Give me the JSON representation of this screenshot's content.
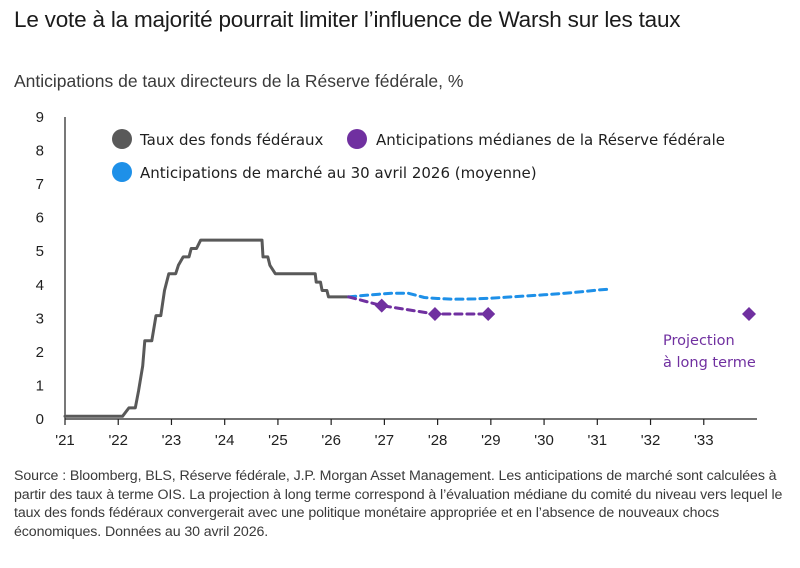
{
  "title": "Le vote à la majorité pourrait limiter l’influence de Warsh sur les taux",
  "subtitle": "Anticipations de taux directeurs de la Réserve fédérale, %",
  "source": "Source : Bloomberg, BLS, Réserve fédérale, J.P. Morgan Asset Management. Les anticipations de marché sont calculées à partir des taux à terme OIS. La projection à long terme correspond à l’évaluation médiane du comité du niveau vers lequel le taux des fonds fédéraux convergerait avec une politique monétaire appropriée et en l’absence de nouveaux chocs économiques. Données au 30 avril 2026.",
  "chart_data": {
    "type": "line",
    "xlim": [
      2021,
      2034
    ],
    "ylim": [
      0,
      9
    ],
    "x_ticks": [
      2021,
      2022,
      2023,
      2024,
      2025,
      2026,
      2027,
      2028,
      2029,
      2030,
      2031,
      2032,
      2033
    ],
    "x_tick_labels": [
      "'21",
      "'22",
      "'23",
      "'24",
      "'25",
      "'26",
      "'27",
      "'28",
      "'29",
      "'30",
      "'31",
      "'32",
      "'33"
    ],
    "y_ticks": [
      0,
      1,
      2,
      3,
      4,
      5,
      6,
      7,
      8,
      9
    ],
    "y_tick_labels": [
      "0",
      "1",
      "2",
      "3",
      "4",
      "5",
      "6",
      "7",
      "8",
      "9"
    ],
    "grid": false,
    "legend_placement": "top",
    "series": [
      {
        "name": "Taux des fonds fédéraux",
        "style": "solid",
        "color": "#595959",
        "points": [
          [
            2021.0,
            0.08
          ],
          [
            2022.08,
            0.08
          ],
          [
            2022.2,
            0.33
          ],
          [
            2022.32,
            0.33
          ],
          [
            2022.38,
            0.83
          ],
          [
            2022.46,
            1.58
          ],
          [
            2022.5,
            2.33
          ],
          [
            2022.63,
            2.33
          ],
          [
            2022.71,
            3.08
          ],
          [
            2022.8,
            3.08
          ],
          [
            2022.87,
            3.83
          ],
          [
            2022.95,
            4.33
          ],
          [
            2023.08,
            4.33
          ],
          [
            2023.13,
            4.58
          ],
          [
            2023.22,
            4.83
          ],
          [
            2023.33,
            4.83
          ],
          [
            2023.37,
            5.08
          ],
          [
            2023.47,
            5.08
          ],
          [
            2023.55,
            5.33
          ],
          [
            2024.7,
            5.33
          ],
          [
            2024.72,
            4.83
          ],
          [
            2024.81,
            4.83
          ],
          [
            2024.85,
            4.58
          ],
          [
            2024.95,
            4.33
          ],
          [
            2025.7,
            4.33
          ],
          [
            2025.72,
            4.08
          ],
          [
            2025.8,
            4.08
          ],
          [
            2025.83,
            3.83
          ],
          [
            2025.92,
            3.83
          ],
          [
            2025.95,
            3.64
          ],
          [
            2026.33,
            3.64
          ]
        ]
      },
      {
        "name": "Anticipations médianes de la Réserve fédérale",
        "style": "dashed",
        "color": "#7030A0",
        "points": [
          [
            2026.33,
            3.64
          ],
          [
            2026.95,
            3.38
          ],
          [
            2027.95,
            3.13
          ],
          [
            2028.95,
            3.13
          ]
        ],
        "markers": [
          [
            2026.95,
            3.38
          ],
          [
            2027.95,
            3.13
          ],
          [
            2028.95,
            3.13
          ],
          [
            2033.85,
            3.13
          ]
        ]
      },
      {
        "name": "Anticipations de marché au 30 avril 2026 (moyenne)",
        "style": "dashed",
        "color": "#1E90E8",
        "points": [
          [
            2026.33,
            3.64
          ],
          [
            2026.6,
            3.68
          ],
          [
            2026.9,
            3.72
          ],
          [
            2027.15,
            3.75
          ],
          [
            2027.45,
            3.75
          ],
          [
            2027.75,
            3.62
          ],
          [
            2028.0,
            3.59
          ],
          [
            2028.3,
            3.57
          ],
          [
            2028.7,
            3.58
          ],
          [
            2029.0,
            3.6
          ],
          [
            2029.5,
            3.65
          ],
          [
            2030.0,
            3.7
          ],
          [
            2030.5,
            3.76
          ],
          [
            2031.0,
            3.84
          ],
          [
            2031.25,
            3.87
          ]
        ]
      }
    ],
    "legend": [
      {
        "label": "Taux des fonds fédéraux",
        "marker": "circle",
        "color": "#595959"
      },
      {
        "label": "Anticipations médianes de la Réserve fédérale",
        "marker": "circle",
        "color": "#7030A0"
      },
      {
        "label": "Anticipations de marché au 30 avril 2026 (moyenne)",
        "marker": "circle",
        "color": "#1E90E8"
      }
    ],
    "annotations": [
      {
        "lines": [
          "Projection",
          "à long terme"
        ],
        "color": "#7030A0",
        "anchor": [
          2032.2,
          3.13
        ]
      }
    ]
  }
}
